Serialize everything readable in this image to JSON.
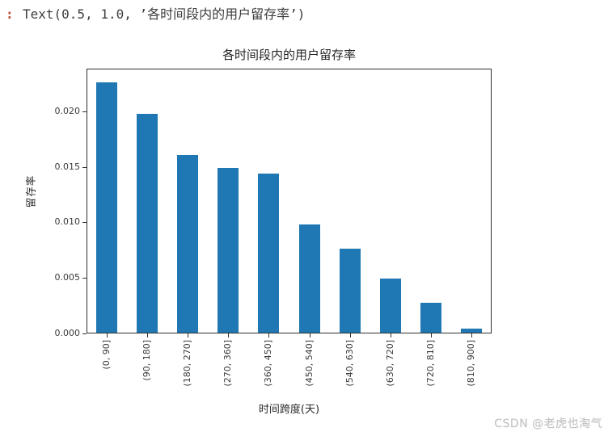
{
  "output_prompt": {
    "marker": ":",
    "text": "Text(0.5, 1.0, ’各时间段内的用户留存率’)"
  },
  "watermark": "CSDN @老虎也淘气",
  "colors": {
    "bar": "#1f77b4",
    "prompt_marker": "#bf4e35",
    "prompt_text": "#3d3d3d",
    "axis": "#2f2f2f",
    "tick_label": "#3a3a3a",
    "watermark": "#c3c3c3"
  },
  "chart_data": {
    "type": "bar",
    "title": "各时间段内的用户留存率",
    "xlabel": "时间跨度(天)",
    "ylabel": "留存率",
    "categories": [
      "(0, 90]",
      "(90, 180]",
      "(180, 270]",
      "(270, 360]",
      "(360, 450]",
      "(450, 540]",
      "(540, 630]",
      "(630, 720]",
      "(720, 810]",
      "(810, 900]"
    ],
    "values": [
      0.0227,
      0.0198,
      0.0161,
      0.0149,
      0.0144,
      0.0098,
      0.0076,
      0.0049,
      0.0027,
      0.0004
    ],
    "yticks": [
      0.0,
      0.005,
      0.01,
      0.015,
      0.02
    ],
    "ytick_labels": [
      "0.000",
      "0.005",
      "0.010",
      "0.015",
      "0.020"
    ],
    "ylim": [
      0,
      0.02385
    ],
    "bar_color": "#1f77b4",
    "grid": false,
    "legend": null,
    "xtick_rotation": 90
  }
}
